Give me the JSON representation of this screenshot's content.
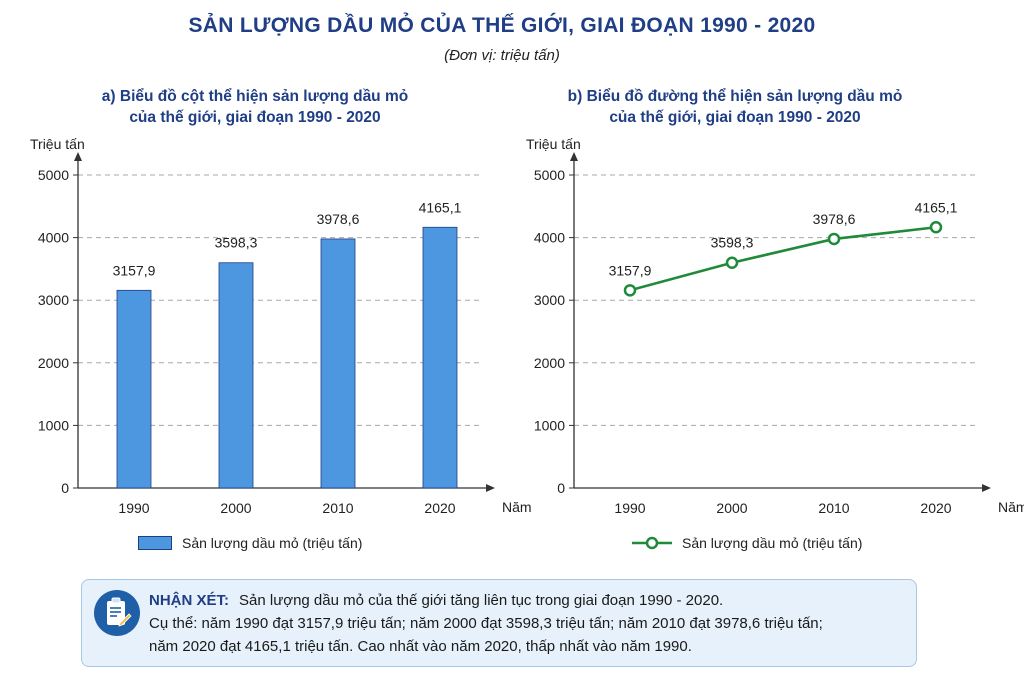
{
  "title": "SẢN LƯỢNG DẦU MỎ CỦA THẾ GIỚI, GIAI ĐOẠN 1990 - 2020",
  "unit": "(Đơn vị: triệu tấn)",
  "chart_data": [
    {
      "type": "bar",
      "title_line1": "a) Biểu đồ cột thể hiện sản lượng dầu mỏ",
      "title_line2": "của thế giới, giai đoạn 1990 - 2020",
      "ylabel": "Triệu tấn",
      "xlabel": "Năm",
      "categories": [
        "1990",
        "2000",
        "2010",
        "2020"
      ],
      "values": [
        3157.9,
        3598.3,
        3978.6,
        4165.1
      ],
      "value_labels": [
        "3157,9",
        "3598,3",
        "3978,6",
        "4165,1"
      ],
      "yticks": [
        "0",
        "1000",
        "2000",
        "3000",
        "4000",
        "5000"
      ],
      "ylim": [
        0,
        5000
      ],
      "grid": true,
      "legend": "Sản lượng dầu mỏ (triệu tấn)",
      "legend_position": "bottom",
      "color": "#4c97e0"
    },
    {
      "type": "line",
      "title_line1": "b) Biểu đồ đường thể hiện sản lượng dầu mỏ",
      "title_line2": "của thế giới, giai đoạn 1990 - 2020",
      "ylabel": "Triệu tấn",
      "xlabel": "Năm",
      "categories": [
        "1990",
        "2000",
        "2010",
        "2020"
      ],
      "values": [
        3157.9,
        3598.3,
        3978.6,
        4165.1
      ],
      "value_labels": [
        "3157,9",
        "3598,3",
        "3978,6",
        "4165,1"
      ],
      "yticks": [
        "0",
        "1000",
        "2000",
        "3000",
        "4000",
        "5000"
      ],
      "ylim": [
        0,
        5000
      ],
      "grid": true,
      "legend": "Sản lượng dầu mỏ (triệu tấn)",
      "legend_position": "bottom",
      "color": "#1e8a3a"
    }
  ],
  "note": {
    "label": "NHẬN XÉT:",
    "line1": "Sản lượng dầu mỏ của thế giới tăng liên tục trong giai đoạn 1990 - 2020.",
    "line2": "Cụ thể: năm 1990 đạt 3157,9 triệu tấn; năm 2000 đạt 3598,3 triệu tấn; năm 2010 đạt 3978,6 triệu tấn;",
    "line3": "năm 2020 đạt 4165,1 triệu tấn. Cao nhất vào năm 2020, thấp nhất vào năm 1990.",
    "icon": "clipboard-pen-icon"
  }
}
